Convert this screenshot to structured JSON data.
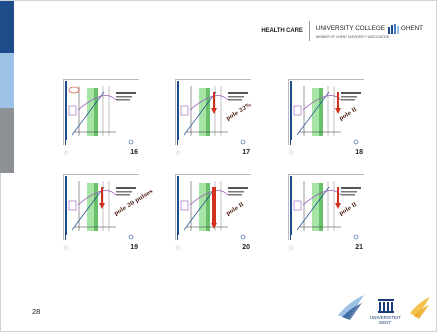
{
  "header": {
    "health_care": "HEALTH CARE",
    "college_left": "UNIVERSITY COLLEGE",
    "college_right": "GHENT",
    "college_sub": "MEMBER OF GHENT UNIVERSITY ASSOCIATION"
  },
  "slides": [
    {
      "number": "16",
      "annotation": ""
    },
    {
      "number": "17",
      "annotation": "pole 22%"
    },
    {
      "number": "18",
      "annotation": "pole ll"
    },
    {
      "number": "19",
      "annotation": "pole 20 pulses"
    },
    {
      "number": "20",
      "annotation": "pole ll"
    },
    {
      "number": "21",
      "annotation": "pole ll"
    }
  ],
  "page_number": "28",
  "footer": {
    "university_line1": "UNIVERSITEIT",
    "university_line2": "GENT"
  },
  "colors": {
    "sidebar_dark": "#1c4c89",
    "sidebar_light": "#9ec2e6",
    "sidebar_gray": "#8d9095",
    "green_band": "#5fcf5f",
    "purple_curve": "#9b59b6",
    "red_arrow": "#d0321e"
  },
  "icons": {
    "star": "☆"
  }
}
